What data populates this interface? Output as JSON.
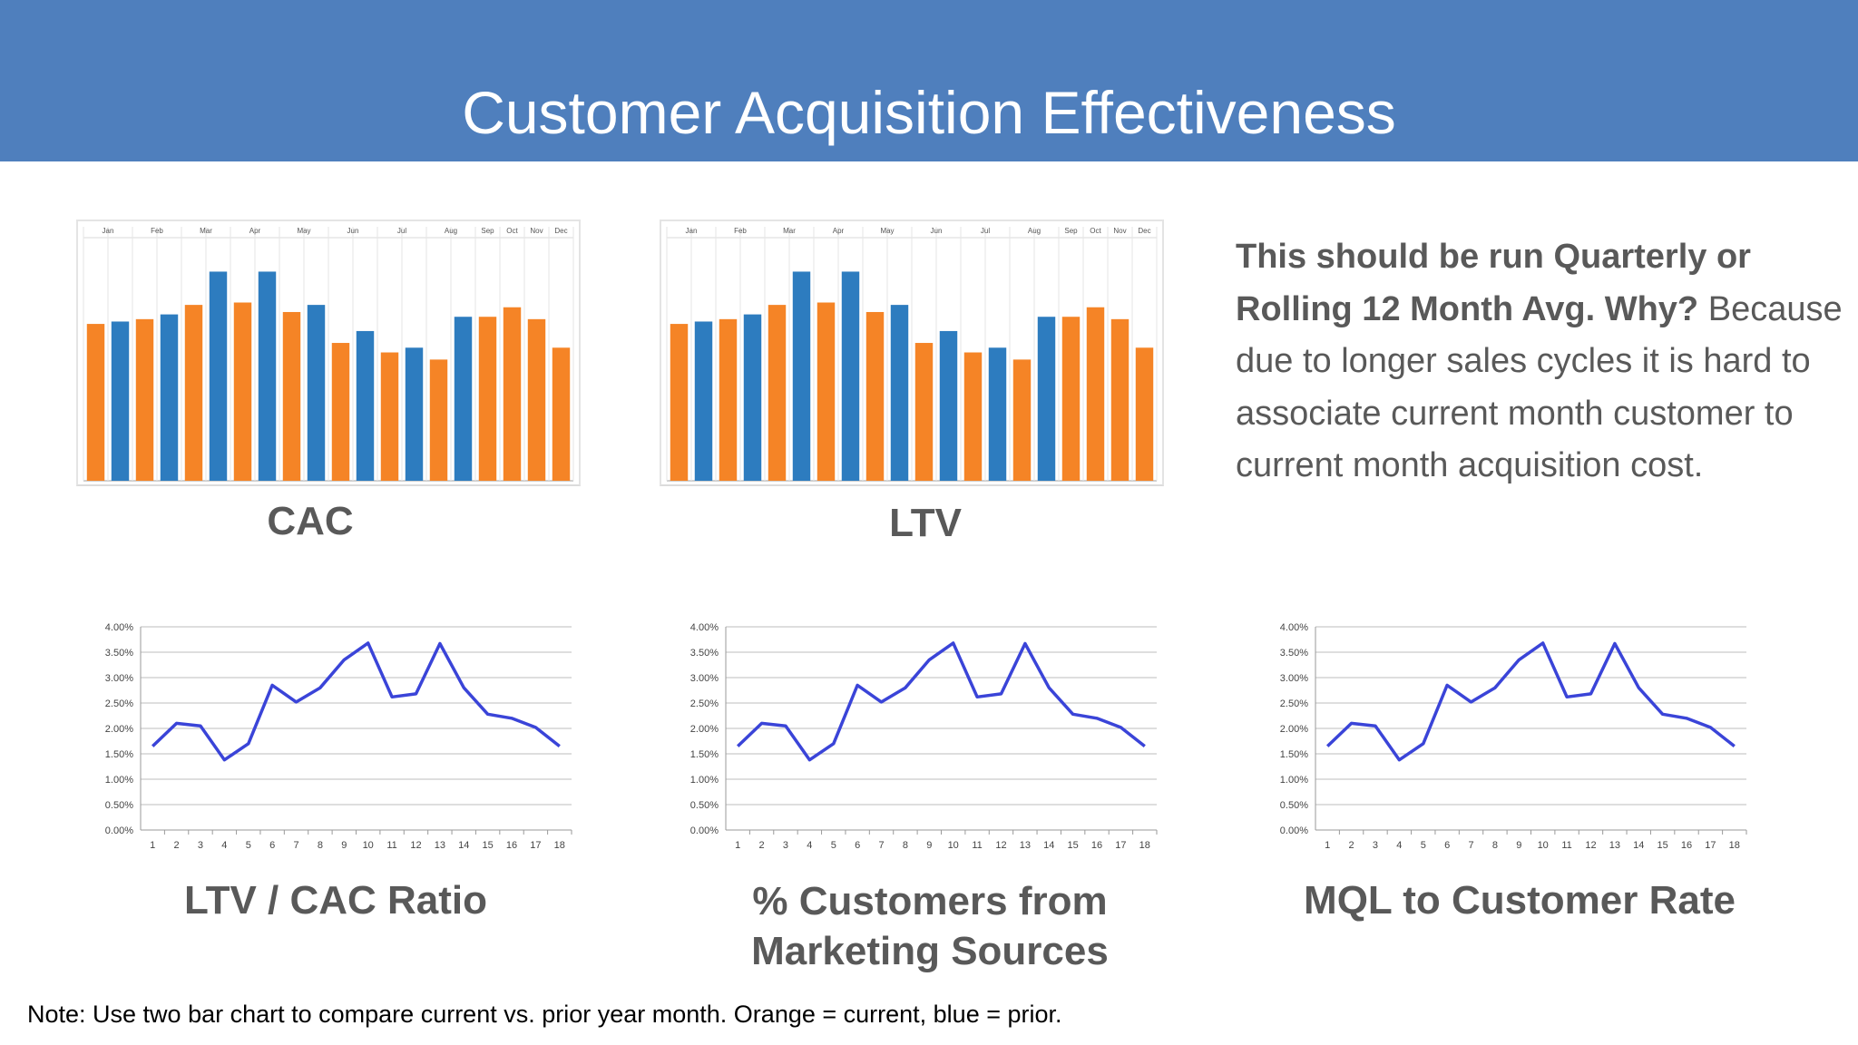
{
  "slide": {
    "title": "Customer Acquisition Effectiveness",
    "colors": {
      "banner": "#4f7fbd",
      "current": "#f58426",
      "prior": "#2d7cbf",
      "line": "#3a44d8",
      "text": "#595959"
    }
  },
  "side_text": {
    "bold": "This should be run Quarterly or Rolling 12 Month Avg.  Why?",
    "normal": "Because due to longer sales cycles it is hard to associate current month customer to current month acquisition cost."
  },
  "captions": {
    "cac": "CAC",
    "ltv": "LTV",
    "ltv_cac": "LTV / CAC Ratio",
    "pct_marketing": "% Customers from Marketing Sources",
    "mql": "MQL to Customer Rate"
  },
  "note": "Note:  Use two bar chart to compare current vs. prior year month. Orange = current, blue = prior.",
  "chart_data": [
    {
      "id": "cac",
      "type": "bar",
      "categories": [
        "Jan",
        "Feb",
        "Mar",
        "Apr",
        "May",
        "Jun",
        "Jul",
        "Aug",
        "Sep",
        "Oct",
        "Nov",
        "Dec"
      ],
      "bars": [
        {
          "s": "current",
          "v": 66
        },
        {
          "s": "prior",
          "v": 67
        },
        {
          "s": "current",
          "v": 68
        },
        {
          "s": "prior",
          "v": 70
        },
        {
          "s": "current",
          "v": 74
        },
        {
          "s": "prior",
          "v": 88
        },
        {
          "s": "current",
          "v": 75
        },
        {
          "s": "prior",
          "v": 88
        },
        {
          "s": "current",
          "v": 71
        },
        {
          "s": "prior",
          "v": 74
        },
        {
          "s": "current",
          "v": 58
        },
        {
          "s": "prior",
          "v": 63
        },
        {
          "s": "current",
          "v": 54
        },
        {
          "s": "prior",
          "v": 56
        },
        {
          "s": "current",
          "v": 51
        },
        {
          "s": "prior",
          "v": 69
        },
        {
          "s": "current",
          "v": 69
        },
        {
          "s": "current",
          "v": 73
        },
        {
          "s": "current",
          "v": 68
        },
        {
          "s": "current",
          "v": 56
        }
      ],
      "ylim": [
        0,
        100
      ]
    },
    {
      "id": "ltv",
      "type": "bar",
      "categories": [
        "Jan",
        "Feb",
        "Mar",
        "Apr",
        "May",
        "Jun",
        "Jul",
        "Aug",
        "Sep",
        "Oct",
        "Nov",
        "Dec"
      ],
      "bars": [
        {
          "s": "current",
          "v": 66
        },
        {
          "s": "prior",
          "v": 67
        },
        {
          "s": "current",
          "v": 68
        },
        {
          "s": "prior",
          "v": 70
        },
        {
          "s": "current",
          "v": 74
        },
        {
          "s": "prior",
          "v": 88
        },
        {
          "s": "current",
          "v": 75
        },
        {
          "s": "prior",
          "v": 88
        },
        {
          "s": "current",
          "v": 71
        },
        {
          "s": "prior",
          "v": 74
        },
        {
          "s": "current",
          "v": 58
        },
        {
          "s": "prior",
          "v": 63
        },
        {
          "s": "current",
          "v": 54
        },
        {
          "s": "prior",
          "v": 56
        },
        {
          "s": "current",
          "v": 51
        },
        {
          "s": "prior",
          "v": 69
        },
        {
          "s": "current",
          "v": 69
        },
        {
          "s": "current",
          "v": 73
        },
        {
          "s": "current",
          "v": 68
        },
        {
          "s": "current",
          "v": 56
        }
      ],
      "ylim": [
        0,
        100
      ]
    },
    {
      "id": "ltv_cac",
      "type": "line",
      "x": [
        1,
        2,
        3,
        4,
        5,
        6,
        7,
        8,
        9,
        10,
        11,
        12,
        13,
        14,
        15,
        16,
        17,
        18
      ],
      "y": [
        1.65,
        2.1,
        2.05,
        1.38,
        1.7,
        2.85,
        2.52,
        2.8,
        3.35,
        3.68,
        2.62,
        2.68,
        3.67,
        2.8,
        2.28,
        2.2,
        2.02,
        1.65
      ],
      "yticks": [
        "0.00%",
        "0.50%",
        "1.00%",
        "1.50%",
        "2.00%",
        "2.50%",
        "3.00%",
        "3.50%",
        "4.00%"
      ],
      "ylim": [
        0,
        4
      ]
    },
    {
      "id": "pct_marketing",
      "type": "line",
      "x": [
        1,
        2,
        3,
        4,
        5,
        6,
        7,
        8,
        9,
        10,
        11,
        12,
        13,
        14,
        15,
        16,
        17,
        18
      ],
      "y": [
        1.65,
        2.1,
        2.05,
        1.38,
        1.7,
        2.85,
        2.52,
        2.8,
        3.35,
        3.68,
        2.62,
        2.68,
        3.67,
        2.8,
        2.28,
        2.2,
        2.02,
        1.65
      ],
      "yticks": [
        "0.00%",
        "0.50%",
        "1.00%",
        "1.50%",
        "2.00%",
        "2.50%",
        "3.00%",
        "3.50%",
        "4.00%"
      ],
      "ylim": [
        0,
        4
      ]
    },
    {
      "id": "mql",
      "type": "line",
      "x": [
        1,
        2,
        3,
        4,
        5,
        6,
        7,
        8,
        9,
        10,
        11,
        12,
        13,
        14,
        15,
        16,
        17,
        18
      ],
      "y": [
        1.65,
        2.1,
        2.05,
        1.38,
        1.7,
        2.85,
        2.52,
        2.8,
        3.35,
        3.68,
        2.62,
        2.68,
        3.67,
        2.8,
        2.28,
        2.2,
        2.02,
        1.65
      ],
      "yticks": [
        "0.00%",
        "0.50%",
        "1.00%",
        "1.50%",
        "2.00%",
        "2.50%",
        "3.00%",
        "3.50%",
        "4.00%"
      ],
      "ylim": [
        0,
        4
      ]
    }
  ]
}
